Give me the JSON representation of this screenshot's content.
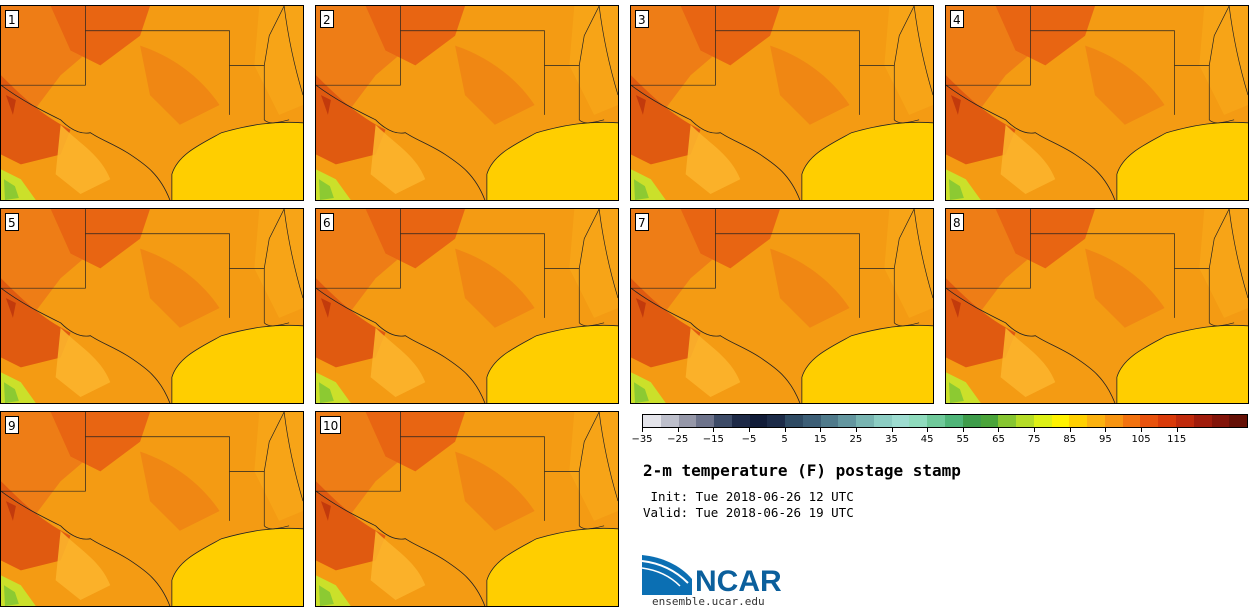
{
  "panels": [
    {
      "label": "1"
    },
    {
      "label": "2"
    },
    {
      "label": "3"
    },
    {
      "label": "4"
    },
    {
      "label": "5"
    },
    {
      "label": "6"
    },
    {
      "label": "7"
    },
    {
      "label": "8"
    },
    {
      "label": "9"
    },
    {
      "label": "10"
    }
  ],
  "colorbar": {
    "ticks": [
      "−35",
      "−25",
      "−15",
      "−5",
      "5",
      "15",
      "25",
      "35",
      "45",
      "55",
      "65",
      "75",
      "85",
      "95",
      "105",
      "115"
    ],
    "colors": [
      "#e4e4ea",
      "#bdbfcb",
      "#9597a8",
      "#6d738b",
      "#3d4b67",
      "#1e2a47",
      "#111c38",
      "#1c2b48",
      "#2e4a63",
      "#3c5e76",
      "#4f7a8b",
      "#63969f",
      "#78b4b1",
      "#8ccdc3",
      "#9ddcd0",
      "#8fdbbd",
      "#6fc99a",
      "#4fb578",
      "#3e9c4a",
      "#4aa43a",
      "#86c531",
      "#b5dc27",
      "#ddf015",
      "#fff200",
      "#ffd000",
      "#fbb10f",
      "#f79411",
      "#f2720f",
      "#e8520d",
      "#d93a0a",
      "#c02a0c",
      "#a01c0c",
      "#821409",
      "#651006"
    ]
  },
  "title": "2-m temperature (F) postage stamp",
  "init_line": " Init: Tue 2018-06-26 12 UTC",
  "valid_line": "Valid: Tue 2018-06-26 19 UTC",
  "logo": {
    "text": "NCAR",
    "url": "ensemble.ucar.edu"
  }
}
